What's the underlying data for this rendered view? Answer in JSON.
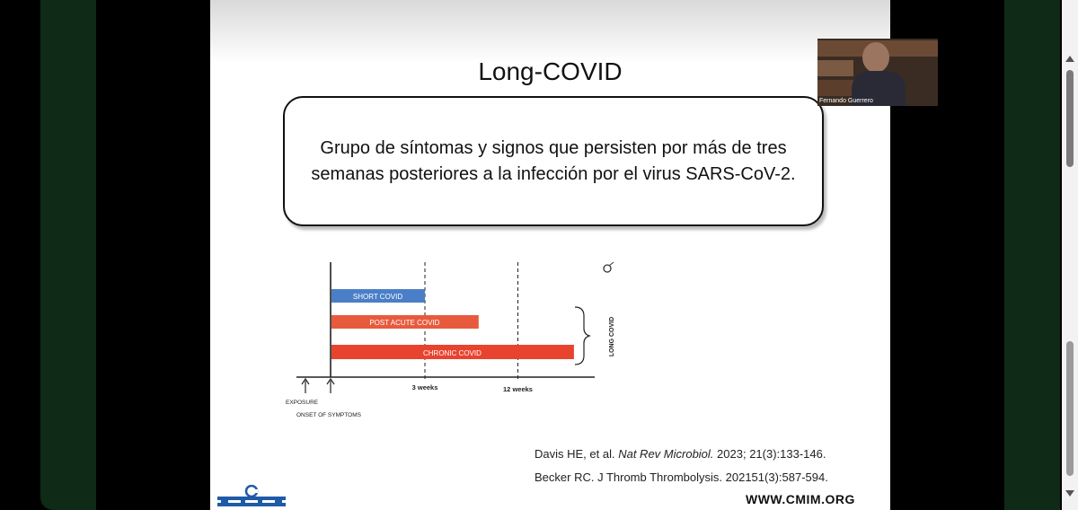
{
  "slide": {
    "title": "Long-COVID",
    "definition_line1": "Grupo de síntomas y signos que persisten por más de tres",
    "definition_line2": "semanas posteriores a la infección por el virus SARS-CoV-2.",
    "references": {
      "ref1_authors": "Davis HE, et al.",
      "ref1_journal": "Nat Rev Microbiol.",
      "ref1_detail": "2023; 21(3):133-146.",
      "ref2": "Becker RC. J Thromb Thrombolysis. 202151(3):587-594."
    },
    "website": "WWW.CMIM.ORG"
  },
  "chart_data": {
    "type": "bar",
    "orientation": "horizontal",
    "bars": [
      {
        "label": "SHORT COVID",
        "end_weeks": 3,
        "color": "#4a7fc7"
      },
      {
        "label": "POST ACUTE COVID",
        "end_weeks": 8.2,
        "color": "#e85a3e"
      },
      {
        "label": "CHRONIC COVID",
        "end_weeks": 20,
        "color": "#e8432e"
      }
    ],
    "markers": [
      {
        "label": "3 weeks",
        "weeks": 3
      },
      {
        "label": "12 weeks",
        "weeks": 12
      }
    ],
    "arrows": [
      {
        "label": "EXPOSURE"
      },
      {
        "label": "ONSET OF SYMPTOMS"
      }
    ],
    "bracket_label": "LONG COVID"
  },
  "video": {
    "speaker_name": "Fernando Guerrero"
  },
  "colors": {
    "frame_panel": "#0f2a16",
    "background": "#000000"
  }
}
